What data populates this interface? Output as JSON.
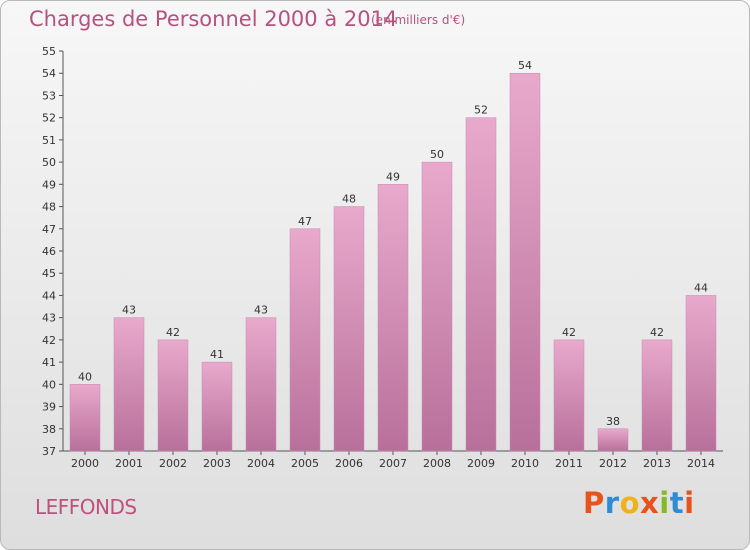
{
  "header": {
    "title": "Charges de Personnel 2000 à 2014",
    "subtitle": "(en milliers d'€)"
  },
  "footer": {
    "commune": "LEFFONDS",
    "logo": {
      "letters": [
        "P",
        "r",
        "o",
        "x",
        "i",
        "t",
        "i"
      ],
      "colors": [
        "#e8521b",
        "#2e8cd6",
        "#f0b21b",
        "#e8521b",
        "#86b92a",
        "#2e8cd6",
        "#e8521b"
      ]
    }
  },
  "colors": {
    "bar_light": "#e8a9cc",
    "bar_dark": "#b8709a",
    "accent": "#b5527f"
  },
  "chart_data": {
    "type": "bar",
    "title": "Charges de Personnel 2000 à 2014",
    "subtitle": "(en milliers d'€)",
    "categories": [
      "2000",
      "2001",
      "2002",
      "2003",
      "2004",
      "2005",
      "2006",
      "2007",
      "2008",
      "2009",
      "2010",
      "2011",
      "2012",
      "2013",
      "2014"
    ],
    "values": [
      40,
      43,
      42,
      41,
      43,
      47,
      48,
      49,
      50,
      52,
      54,
      42,
      38,
      42,
      44
    ],
    "ylim": [
      37,
      55
    ],
    "yticks": [
      37,
      38,
      39,
      40,
      41,
      42,
      43,
      44,
      45,
      46,
      47,
      48,
      49,
      50,
      51,
      52,
      53,
      54,
      55
    ],
    "grid": false,
    "data_labels": true
  }
}
